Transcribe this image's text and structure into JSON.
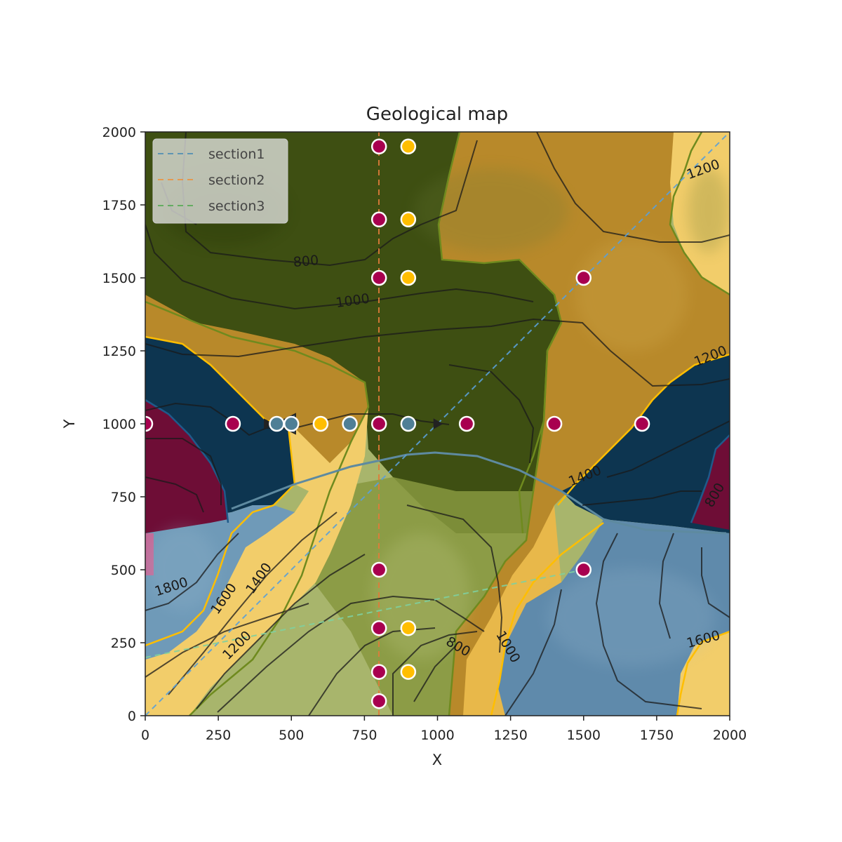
{
  "chart_data": {
    "type": "scatter",
    "title": "Geological map",
    "xlabel": "X",
    "ylabel": "Y",
    "xlim": [
      0,
      2000
    ],
    "ylim": [
      0,
      2000
    ],
    "xticks": [
      "0",
      "250",
      "500",
      "750",
      "1000",
      "1250",
      "1500",
      "1750",
      "2000"
    ],
    "yticks": [
      "0",
      "250",
      "500",
      "750",
      "1000",
      "1250",
      "1500",
      "1750",
      "2000"
    ],
    "grid": false,
    "legend_position": "top-left",
    "legend": [
      {
        "name": "section1",
        "color": "#1f77b4",
        "style": "dashed"
      },
      {
        "name": "section2",
        "color": "#ff7f0e",
        "style": "dashed"
      },
      {
        "name": "section3",
        "color": "#2ca02c",
        "style": "dashed"
      }
    ],
    "sections": [
      {
        "name": "section1",
        "x": [
          0,
          2000
        ],
        "y": [
          0,
          2000
        ]
      },
      {
        "name": "section2",
        "x": [
          800,
          800
        ],
        "y": [
          0,
          2000
        ]
      },
      {
        "name": "section3",
        "x": [
          0,
          1500
        ],
        "y": [
          200,
          500
        ]
      }
    ],
    "unit_colors": {
      "dark_olive": "#3e4f12",
      "light_olive": "#a8b56c",
      "olive_mid": "#87983f",
      "ochre": "#b8892a",
      "gold_light": "#f2cd6a",
      "navy": "#0d3550",
      "steel_blue": "#6f9ab8",
      "magenta": "#6e0d36"
    },
    "contour_labels": [
      {
        "text": "800",
        "x": 550,
        "y": 1555,
        "rotation": -5
      },
      {
        "text": "1000",
        "x": 710,
        "y": 1420,
        "rotation": -8
      },
      {
        "text": "1200",
        "x": 1910,
        "y": 1870,
        "rotation": -20
      },
      {
        "text": "1200",
        "x": 1935,
        "y": 1230,
        "rotation": -22
      },
      {
        "text": "1400",
        "x": 1505,
        "y": 820,
        "rotation": -22
      },
      {
        "text": "1600",
        "x": 1910,
        "y": 260,
        "rotation": -15
      },
      {
        "text": "1800",
        "x": 90,
        "y": 440,
        "rotation": -18
      },
      {
        "text": "1600",
        "x": 270,
        "y": 400,
        "rotation": -55
      },
      {
        "text": "1400",
        "x": 390,
        "y": 470,
        "rotation": -55
      },
      {
        "text": "1200",
        "x": 315,
        "y": 240,
        "rotation": -45
      },
      {
        "text": "800",
        "x": 1070,
        "y": 235,
        "rotation": 30
      },
      {
        "text": "1000",
        "x": 1240,
        "y": 235,
        "rotation": 60
      },
      {
        "text": "800",
        "x": 1950,
        "y": 755,
        "rotation": -60
      }
    ],
    "interface_points": [
      {
        "x": 800,
        "y": 1950,
        "color": "#a8004f"
      },
      {
        "x": 900,
        "y": 1950,
        "color": "#ffbe00"
      },
      {
        "x": 800,
        "y": 1700,
        "color": "#a8004f"
      },
      {
        "x": 900,
        "y": 1700,
        "color": "#ffbe00"
      },
      {
        "x": 800,
        "y": 1500,
        "color": "#a8004f"
      },
      {
        "x": 900,
        "y": 1500,
        "color": "#ffbe00"
      },
      {
        "x": 1500,
        "y": 1500,
        "color": "#a8004f"
      },
      {
        "x": 0,
        "y": 1000,
        "color": "#a8004f"
      },
      {
        "x": 300,
        "y": 1000,
        "color": "#a8004f"
      },
      {
        "x": 450,
        "y": 1000,
        "color": "#4f7f96"
      },
      {
        "x": 500,
        "y": 1000,
        "color": "#4f7f96"
      },
      {
        "x": 600,
        "y": 1000,
        "color": "#ffbe00"
      },
      {
        "x": 700,
        "y": 1000,
        "color": "#4f7f96"
      },
      {
        "x": 800,
        "y": 1000,
        "color": "#a8004f"
      },
      {
        "x": 900,
        "y": 1000,
        "color": "#4f7f96"
      },
      {
        "x": 1100,
        "y": 1000,
        "color": "#a8004f"
      },
      {
        "x": 1400,
        "y": 1000,
        "color": "#a8004f"
      },
      {
        "x": 1700,
        "y": 1000,
        "color": "#a8004f"
      },
      {
        "x": 800,
        "y": 500,
        "color": "#a8004f"
      },
      {
        "x": 1500,
        "y": 500,
        "color": "#a8004f"
      },
      {
        "x": 800,
        "y": 300,
        "color": "#a8004f"
      },
      {
        "x": 900,
        "y": 300,
        "color": "#ffbe00"
      },
      {
        "x": 800,
        "y": 150,
        "color": "#a8004f"
      },
      {
        "x": 900,
        "y": 150,
        "color": "#ffbe00"
      },
      {
        "x": 800,
        "y": 50,
        "color": "#a8004f"
      }
    ],
    "orientation_markers": [
      {
        "x": 420,
        "y": 1000,
        "color": "#222222"
      },
      {
        "x": 480,
        "y": 1000,
        "color": "#222222"
      },
      {
        "x": 1000,
        "y": 1000,
        "color": "#222222"
      }
    ]
  }
}
